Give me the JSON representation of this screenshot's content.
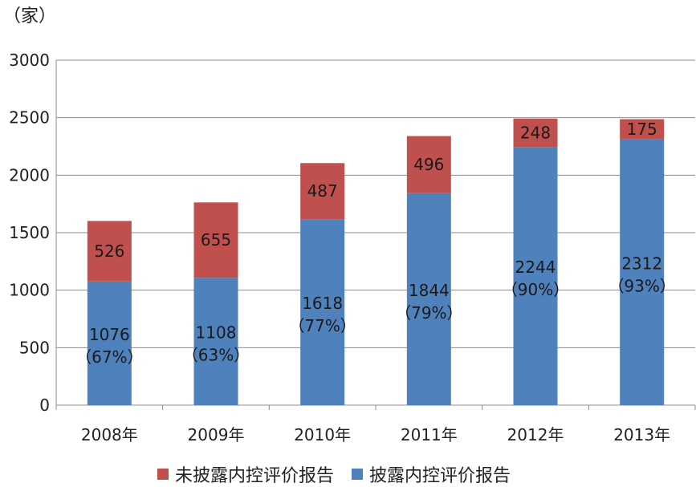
{
  "unit_label": "（家）",
  "chart_data": {
    "type": "bar",
    "stacked": true,
    "categories": [
      "2008年",
      "2009年",
      "2010年",
      "2011年",
      "2012年",
      "2013年"
    ],
    "series": [
      {
        "name": "披露内控评价报告",
        "color": "#4f81bd",
        "values": [
          1076,
          1108,
          1618,
          1844,
          2244,
          2312
        ],
        "labels": [
          "1076",
          "1108",
          "1618",
          "1844",
          "2244",
          "2312"
        ],
        "percent_labels": [
          "（67%）",
          "（63%）",
          "（77%）",
          "（79%）",
          "（90%）",
          "（93%）"
        ]
      },
      {
        "name": "未披露内控评价报告",
        "color": "#c0504d",
        "values": [
          526,
          655,
          487,
          496,
          248,
          175
        ],
        "labels": [
          "526",
          "655",
          "487",
          "496",
          "248",
          "175"
        ]
      }
    ],
    "ylim": [
      0,
      3000
    ],
    "yticks": [
      "0",
      "500",
      "1000",
      "1500",
      "2000",
      "2500",
      "3000"
    ],
    "grid": true,
    "legend_position": "bottom"
  },
  "legend": [
    {
      "label": "未披露内控评价报告",
      "color": "#c0504d"
    },
    {
      "label": "披露内控评价报告",
      "color": "#4f81bd"
    }
  ]
}
